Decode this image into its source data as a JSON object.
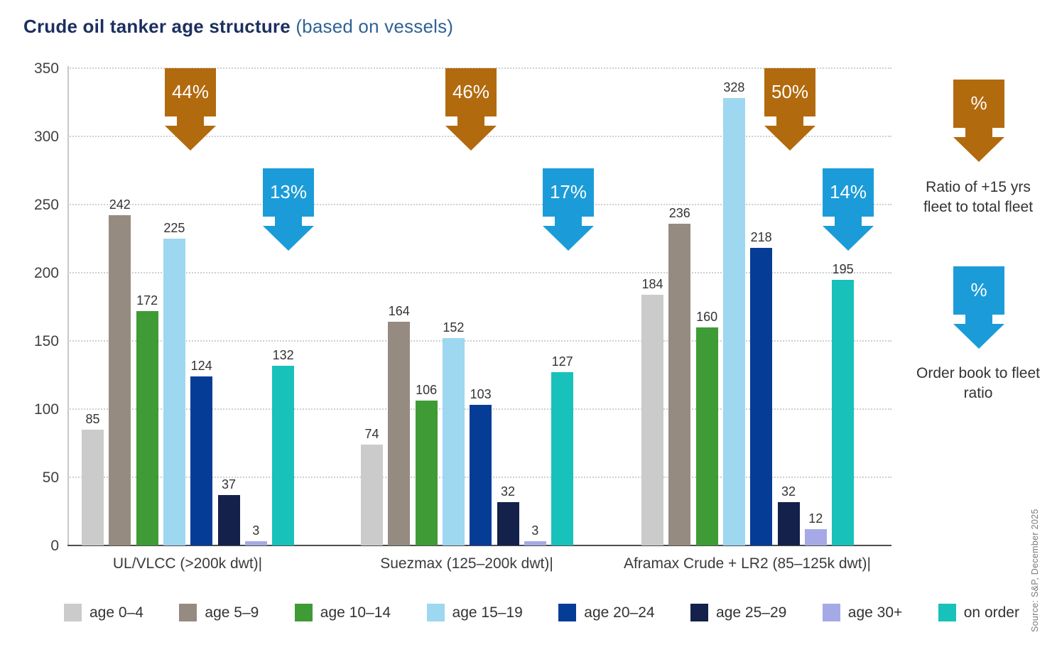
{
  "title": {
    "main": "Crude oil tanker age structure",
    "suffix": " (based on vessels)"
  },
  "source": "Source: S&P, December 2025",
  "chart_data": {
    "type": "bar",
    "title": "Crude oil tanker age structure (based on vessels)",
    "categories": [
      "UL/VLCC (>200k dwt)|",
      "Suezmax (125–200k dwt)|",
      "Aframax Crude + LR2 (85–125k dwt)|"
    ],
    "series": [
      {
        "name": "age 0–4",
        "color": "#cbcbcb",
        "values": [
          85,
          74,
          184
        ]
      },
      {
        "name": "age 5–9",
        "color": "#958b80",
        "values": [
          242,
          164,
          236
        ]
      },
      {
        "name": "age 10–14",
        "color": "#3f9b35",
        "values": [
          172,
          106,
          160
        ]
      },
      {
        "name": "age 15–19",
        "color": "#9ed7f0",
        "values": [
          225,
          152,
          328
        ]
      },
      {
        "name": "age 20–24",
        "color": "#053d96",
        "values": [
          124,
          103,
          218
        ]
      },
      {
        "name": "age 25–29",
        "color": "#13214b",
        "values": [
          37,
          32,
          32
        ]
      },
      {
        "name": "age 30+",
        "color": "#a5aae6",
        "values": [
          3,
          3,
          12
        ]
      },
      {
        "name": "on order",
        "color": "#18c1ba",
        "values": [
          132,
          127,
          195
        ]
      }
    ],
    "y_axis": {
      "min": 0,
      "max": 350,
      "step": 50,
      "ticks": [
        0,
        50,
        100,
        150,
        200,
        250,
        300,
        350
      ]
    },
    "grid": "dotted-horizontal",
    "legend_position": "bottom",
    "annotations": {
      "fleet_ratio": {
        "color": "#b26a0e",
        "values": [
          "44%",
          "46%",
          "50%"
        ],
        "meaning": "Ratio of +15 yrs fleet to total fleet"
      },
      "order_book_ratio": {
        "color": "#1b9cd9",
        "values": [
          "13%",
          "17%",
          "14%"
        ],
        "meaning": "Order book to fleet ratio"
      }
    }
  },
  "arrow_legend": {
    "fleet": {
      "symbol": "%",
      "color": "#b26a0e",
      "text": "Ratio of +15 yrs fleet to total fleet"
    },
    "orderbook": {
      "symbol": "%",
      "color": "#1b9cd9",
      "text": "Order book to fleet ratio"
    }
  }
}
